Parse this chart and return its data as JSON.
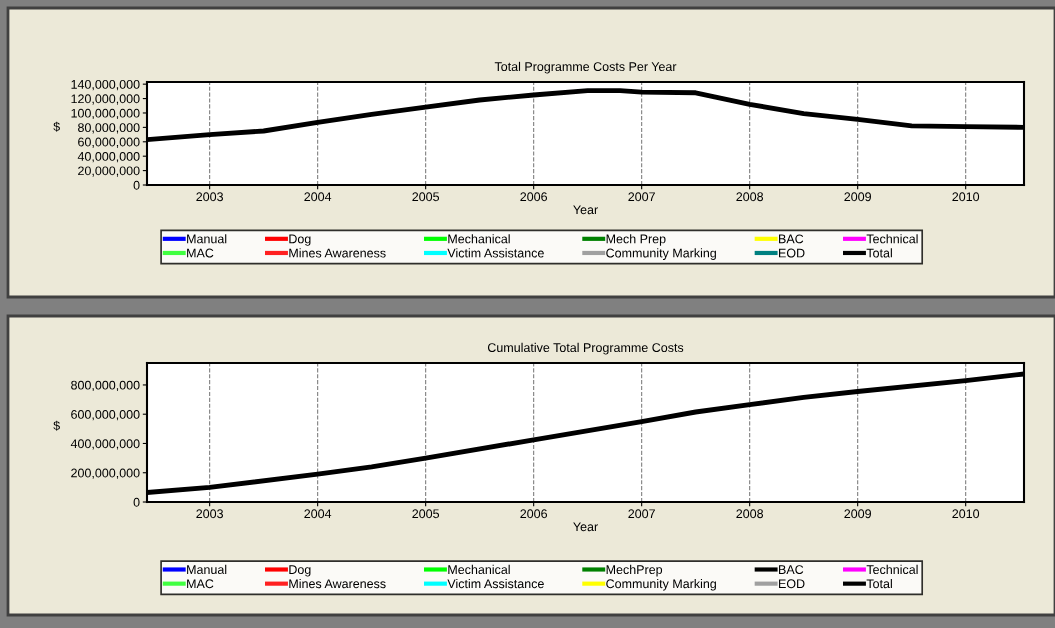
{
  "chart_data": [
    {
      "type": "line",
      "title": "Total Programme Costs Per Year",
      "xlabel": "Year",
      "ylabel": "$",
      "x": [
        2002.42,
        2003,
        2003.5,
        2004,
        2004.5,
        2005,
        2005.5,
        2006,
        2006.5,
        2006.8,
        2007,
        2007.5,
        2008,
        2008.5,
        2009,
        2009.5,
        2010,
        2010.54
      ],
      "series": [
        {
          "name": "Manual",
          "color": "#0000ff",
          "values": [
            null,
            null,
            null,
            null,
            null,
            null,
            null,
            null,
            null,
            null,
            null,
            null,
            null,
            null,
            null,
            null,
            null,
            null
          ]
        },
        {
          "name": "Dog",
          "color": "#ff0000",
          "values": [
            null,
            null,
            null,
            null,
            null,
            null,
            null,
            null,
            null,
            null,
            null,
            null,
            null,
            null,
            null,
            null,
            null,
            null
          ]
        },
        {
          "name": "Mechanical",
          "color": "#00ff00",
          "values": [
            null,
            null,
            null,
            null,
            null,
            null,
            null,
            null,
            null,
            null,
            null,
            null,
            null,
            null,
            null,
            null,
            null,
            null
          ]
        },
        {
          "name": "Mech Prep",
          "color": "#008000",
          "values": [
            null,
            null,
            null,
            null,
            null,
            null,
            null,
            null,
            null,
            null,
            null,
            null,
            null,
            null,
            null,
            null,
            null,
            null
          ]
        },
        {
          "name": "BAC",
          "color": "#ffff00",
          "values": [
            null,
            null,
            null,
            null,
            null,
            null,
            null,
            null,
            null,
            null,
            null,
            null,
            null,
            null,
            null,
            null,
            null,
            null
          ]
        },
        {
          "name": "Technical",
          "color": "#ff00ff",
          "values": [
            null,
            null,
            null,
            null,
            null,
            null,
            null,
            null,
            null,
            null,
            null,
            null,
            null,
            null,
            null,
            null,
            null,
            null
          ]
        },
        {
          "name": "MAC",
          "color": "#40ff40",
          "values": [
            null,
            null,
            null,
            null,
            null,
            null,
            null,
            null,
            null,
            null,
            null,
            null,
            null,
            null,
            null,
            null,
            null,
            null
          ]
        },
        {
          "name": "Mines Awareness",
          "color": "#ff2020",
          "values": [
            null,
            null,
            null,
            null,
            null,
            null,
            null,
            null,
            null,
            null,
            null,
            null,
            null,
            null,
            null,
            null,
            null,
            null
          ]
        },
        {
          "name": "Victim Assistance",
          "color": "#00ffff",
          "values": [
            null,
            null,
            null,
            null,
            null,
            null,
            null,
            null,
            null,
            null,
            null,
            null,
            null,
            null,
            null,
            null,
            null,
            null
          ]
        },
        {
          "name": "Community Marking",
          "color": "#a0a0a0",
          "values": [
            null,
            null,
            null,
            null,
            null,
            null,
            null,
            null,
            null,
            null,
            null,
            null,
            null,
            null,
            null,
            null,
            null,
            null
          ]
        },
        {
          "name": "EOD",
          "color": "#008080",
          "values": [
            null,
            null,
            null,
            null,
            null,
            null,
            null,
            null,
            null,
            null,
            null,
            null,
            null,
            null,
            null,
            null,
            null,
            null
          ]
        },
        {
          "name": "Total",
          "color": "#000000",
          "values": [
            63000000,
            70000000,
            75000000,
            87000000,
            98000000,
            108000000,
            118000000,
            125000000,
            131000000,
            131000000,
            129000000,
            128000000,
            112000000,
            99000000,
            91000000,
            82000000,
            81000000,
            80000000
          ]
        }
      ],
      "xlim": [
        2002.42,
        2010.54
      ],
      "xticks": [
        2003,
        2004,
        2005,
        2006,
        2007,
        2008,
        2009,
        2010
      ],
      "ylim": [
        0,
        143000000
      ],
      "yticks": [
        {
          "value": 0,
          "label": "0"
        },
        {
          "value": 20000000,
          "label": "20,000,000"
        },
        {
          "value": 40000000,
          "label": "40,000,000"
        },
        {
          "value": 60000000,
          "label": "60,000,000"
        },
        {
          "value": 80000000,
          "label": "80,000,000"
        },
        {
          "value": 100000000,
          "label": "100,000,000"
        },
        {
          "value": 120000000,
          "label": "120,000,000"
        },
        {
          "value": 140000000,
          "label": "140,000,000"
        }
      ],
      "grid": "x",
      "legend": "bottom"
    },
    {
      "type": "line",
      "title": "Cumulative Total Programme Costs",
      "xlabel": "Year",
      "ylabel": "$",
      "x": [
        2002.42,
        2003,
        2004,
        2004.5,
        2005,
        2006,
        2007,
        2007.5,
        2008,
        2008.5,
        2009,
        2010,
        2010.54
      ],
      "series": [
        {
          "name": "Manual",
          "color": "#0000ff",
          "values": [
            null,
            null,
            null,
            null,
            null,
            null,
            null,
            null,
            null,
            null,
            null,
            null,
            null
          ]
        },
        {
          "name": "Dog",
          "color": "#ff0000",
          "values": [
            null,
            null,
            null,
            null,
            null,
            null,
            null,
            null,
            null,
            null,
            null,
            null,
            null
          ]
        },
        {
          "name": "Mechanical",
          "color": "#00ff00",
          "values": [
            null,
            null,
            null,
            null,
            null,
            null,
            null,
            null,
            null,
            null,
            null,
            null,
            null
          ]
        },
        {
          "name": "MechPrep",
          "color": "#008000",
          "values": [
            null,
            null,
            null,
            null,
            null,
            null,
            null,
            null,
            null,
            null,
            null,
            null,
            null
          ]
        },
        {
          "name": "BAC",
          "color": "#000000",
          "values": [
            null,
            null,
            null,
            null,
            null,
            null,
            null,
            null,
            null,
            null,
            null,
            null,
            null
          ]
        },
        {
          "name": "Technical",
          "color": "#ff00ff",
          "values": [
            null,
            null,
            null,
            null,
            null,
            null,
            null,
            null,
            null,
            null,
            null,
            null,
            null
          ]
        },
        {
          "name": "MAC",
          "color": "#40ff40",
          "values": [
            null,
            null,
            null,
            null,
            null,
            null,
            null,
            null,
            null,
            null,
            null,
            null,
            null
          ]
        },
        {
          "name": "Mines Awareness",
          "color": "#ff2020",
          "values": [
            null,
            null,
            null,
            null,
            null,
            null,
            null,
            null,
            null,
            null,
            null,
            null,
            null
          ]
        },
        {
          "name": "Victim Assistance",
          "color": "#00ffff",
          "values": [
            null,
            null,
            null,
            null,
            null,
            null,
            null,
            null,
            null,
            null,
            null,
            null,
            null
          ]
        },
        {
          "name": "Community Marking",
          "color": "#ffff00",
          "values": [
            null,
            null,
            null,
            null,
            null,
            null,
            null,
            null,
            null,
            null,
            null,
            null,
            null
          ]
        },
        {
          "name": "EOD",
          "color": "#a0a0a0",
          "values": [
            null,
            null,
            null,
            null,
            null,
            null,
            null,
            null,
            null,
            null,
            null,
            null,
            null
          ]
        },
        {
          "name": "Total",
          "color": "#000000",
          "values": [
            65000000,
            100000000,
            190000000,
            240000000,
            300000000,
            425000000,
            550000000,
            615000000,
            665000000,
            715000000,
            755000000,
            830000000,
            875000000
          ]
        }
      ],
      "xlim": [
        2002.42,
        2010.54
      ],
      "xticks": [
        2003,
        2004,
        2005,
        2006,
        2007,
        2008,
        2009,
        2010
      ],
      "ylim": [
        0,
        950000000
      ],
      "yticks": [
        {
          "value": 0,
          "label": "0"
        },
        {
          "value": 200000000,
          "label": "200,000,000"
        },
        {
          "value": 400000000,
          "label": "400,000,000"
        },
        {
          "value": 600000000,
          "label": "600,000,000"
        },
        {
          "value": 800000000,
          "label": "800,000,000"
        }
      ],
      "grid": "x",
      "legend": "bottom"
    }
  ]
}
